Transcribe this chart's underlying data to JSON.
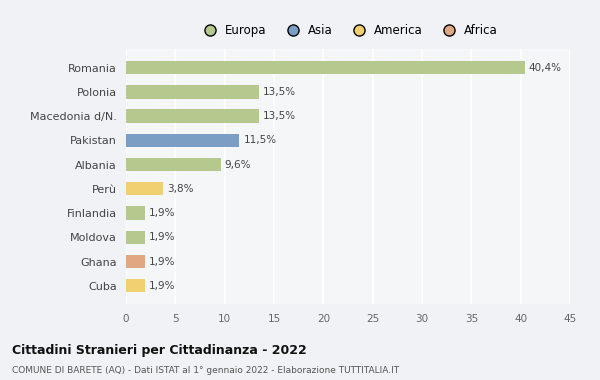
{
  "countries": [
    "Romania",
    "Polonia",
    "Macedonia d/N.",
    "Pakistan",
    "Albania",
    "Perù",
    "Finlandia",
    "Moldova",
    "Ghana",
    "Cuba"
  ],
  "values": [
    40.4,
    13.5,
    13.5,
    11.5,
    9.6,
    3.8,
    1.9,
    1.9,
    1.9,
    1.9
  ],
  "labels": [
    "40,4%",
    "13,5%",
    "13,5%",
    "11,5%",
    "9,6%",
    "3,8%",
    "1,9%",
    "1,9%",
    "1,9%",
    "1,9%"
  ],
  "colors": [
    "#b5c98e",
    "#b5c98e",
    "#b5c98e",
    "#7b9fc4",
    "#b5c98e",
    "#f0d070",
    "#b5c98e",
    "#b5c98e",
    "#e0a882",
    "#f0d070"
  ],
  "legend_labels": [
    "Europa",
    "Asia",
    "America",
    "Africa"
  ],
  "legend_colors": [
    "#b5c98e",
    "#7b9fc4",
    "#f0d070",
    "#e0a882"
  ],
  "xlim": [
    0,
    45
  ],
  "xticks": [
    0,
    5,
    10,
    15,
    20,
    25,
    30,
    35,
    40,
    45
  ],
  "title": "Cittadini Stranieri per Cittadinanza - 2022",
  "subtitle": "COMUNE DI BARETE (AQ) - Dati ISTAT al 1° gennaio 2022 - Elaborazione TUTTITALIA.IT",
  "bg_color": "#f0f2f5",
  "plot_bg_color": "#f5f6f8",
  "grid_color": "#ffffff",
  "bar_height": 0.55
}
